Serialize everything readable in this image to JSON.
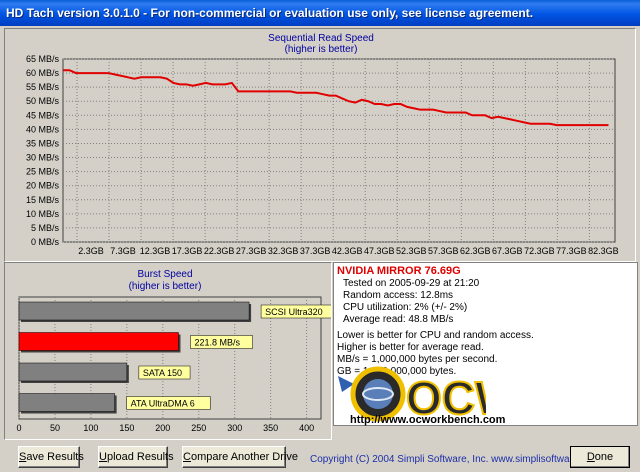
{
  "window": {
    "title": "HD Tach version 3.0.1.0  - For non-commercial or evaluation use only, see license agreement."
  },
  "seq_chart": {
    "title": "Sequential Read Speed",
    "subtitle": "(higher is better)",
    "y_ticks": [
      "0 MB/s",
      "5 MB/s",
      "10 MB/s",
      "15 MB/s",
      "20 MB/s",
      "25 MB/s",
      "30 MB/s",
      "35 MB/s",
      "40 MB/s",
      "45 MB/s",
      "50 MB/s",
      "55 MB/s",
      "60 MB/s",
      "65 MB/s"
    ],
    "x_ticks": [
      "2.3GB",
      "7.3GB",
      "12.3GB",
      "17.3GB",
      "22.3GB",
      "27.3GB",
      "32.3GB",
      "37.3GB",
      "42.3GB",
      "47.3GB",
      "52.3GB",
      "57.3GB",
      "62.3GB",
      "67.3GB",
      "72.3GB",
      "77.3GB",
      "82.3GB"
    ],
    "line_color": "#e00000"
  },
  "burst_chart": {
    "title": "Burst Speed",
    "subtitle": "(higher is better)",
    "x_ticks": [
      "0",
      "50",
      "100",
      "150",
      "200",
      "250",
      "300",
      "350",
      "400"
    ]
  },
  "chart_data": [
    {
      "type": "line",
      "title": "Sequential Read Speed",
      "subtitle": "(higher is better)",
      "xlabel": "",
      "ylabel": "",
      "ylim": [
        0,
        65
      ],
      "xlim": [
        0,
        85
      ],
      "grid": true,
      "series": [
        {
          "x": [
            0,
            1,
            2,
            3,
            4,
            5,
            6,
            7,
            8,
            9,
            10,
            11,
            12,
            13,
            14,
            15,
            16,
            17,
            18,
            19,
            20,
            21,
            22,
            23,
            24,
            25,
            26,
            27,
            28,
            29,
            30,
            31,
            32,
            33,
            34,
            35,
            36,
            37,
            38,
            39,
            40,
            41,
            42,
            43,
            44,
            45,
            46,
            47,
            48,
            49,
            50,
            51,
            52,
            53,
            54,
            55,
            56,
            57,
            58,
            59,
            60,
            61,
            62,
            63,
            64,
            65,
            66,
            67,
            68,
            69,
            70,
            71,
            72,
            73,
            74,
            75,
            76,
            77,
            78,
            79,
            80,
            81,
            82,
            83,
            84
          ],
          "values": [
            61,
            61,
            60,
            60,
            60,
            60,
            60,
            60,
            59.5,
            59,
            58.5,
            58,
            58.5,
            58.5,
            58.5,
            58.5,
            58,
            56.5,
            56,
            56,
            55.5,
            56,
            56.5,
            56,
            56,
            56,
            56.5,
            53.5,
            53.5,
            53.5,
            53.5,
            53.5,
            53.5,
            53.5,
            53.5,
            53.5,
            53,
            53,
            53,
            53,
            52.5,
            52,
            52,
            51,
            50,
            49.5,
            50.5,
            50,
            49,
            49,
            48.5,
            49,
            49,
            48,
            47.5,
            47,
            47,
            47,
            46.5,
            46,
            46,
            46,
            46,
            45,
            45,
            45,
            44,
            44.5,
            44,
            43.5,
            43,
            42.5,
            42,
            42,
            42,
            42,
            41.5,
            41.5,
            41.5,
            41.5,
            41.5,
            41.5,
            41.5,
            41.5,
            41.5
          ]
        }
      ],
      "y_ticks": [
        "0 MB/s",
        "5 MB/s",
        "10 MB/s",
        "15 MB/s",
        "20 MB/s",
        "25 MB/s",
        "30 MB/s",
        "35 MB/s",
        "40 MB/s",
        "45 MB/s",
        "50 MB/s",
        "55 MB/s",
        "60 MB/s",
        "65 MB/s"
      ],
      "x_ticks": [
        "2.3GB",
        "7.3GB",
        "12.3GB",
        "17.3GB",
        "22.3GB",
        "27.3GB",
        "32.3GB",
        "37.3GB",
        "42.3GB",
        "47.3GB",
        "52.3GB",
        "57.3GB",
        "62.3GB",
        "67.3GB",
        "72.3GB",
        "77.3GB",
        "82.3GB"
      ]
    },
    {
      "type": "bar",
      "title": "Burst Speed",
      "subtitle": "(higher is better)",
      "orientation": "horizontal",
      "xlim": [
        0,
        420
      ],
      "categories": [
        "SCSI Ultra320",
        "221.8 MB/s",
        "SATA 150",
        "ATA UltraDMA 6"
      ],
      "values": [
        320,
        221.8,
        150,
        133
      ],
      "colors": [
        "#808080",
        "#ff0000",
        "#808080",
        "#808080"
      ],
      "x_ticks": [
        "0",
        "50",
        "100",
        "150",
        "200",
        "250",
        "300",
        "350",
        "400"
      ]
    }
  ],
  "info": {
    "drive_name": "NVIDIA MIRROR 76.69G",
    "tested_on": "Tested on 2005-09-29 at 21:20",
    "random_access": "Random access: 12.8ms",
    "cpu_utilization": "CPU utilization: 2% (+/- 2%)",
    "average_read": "Average read: 48.8 MB/s",
    "note1": "Lower is better for CPU and random access.",
    "note2": "Higher is better for average read.",
    "note3": "MB/s = 1,000,000 bytes per second.",
    "note4": "GB = 1,000,000,000 bytes."
  },
  "logo": {
    "text": "OCW",
    "url": "http://www.ocworkbench.com"
  },
  "buttons": {
    "save_pre": "S",
    "save_rest": "ave Results",
    "upload_pre": "U",
    "upload_rest": "pload Results",
    "compare_pre": "C",
    "compare_rest": "ompare Another Drive",
    "done_pre": "D",
    "done_rest": "one"
  },
  "copyright": "Copyright (C) 2004 Simpli Software, Inc. www.simplisoftware.com"
}
